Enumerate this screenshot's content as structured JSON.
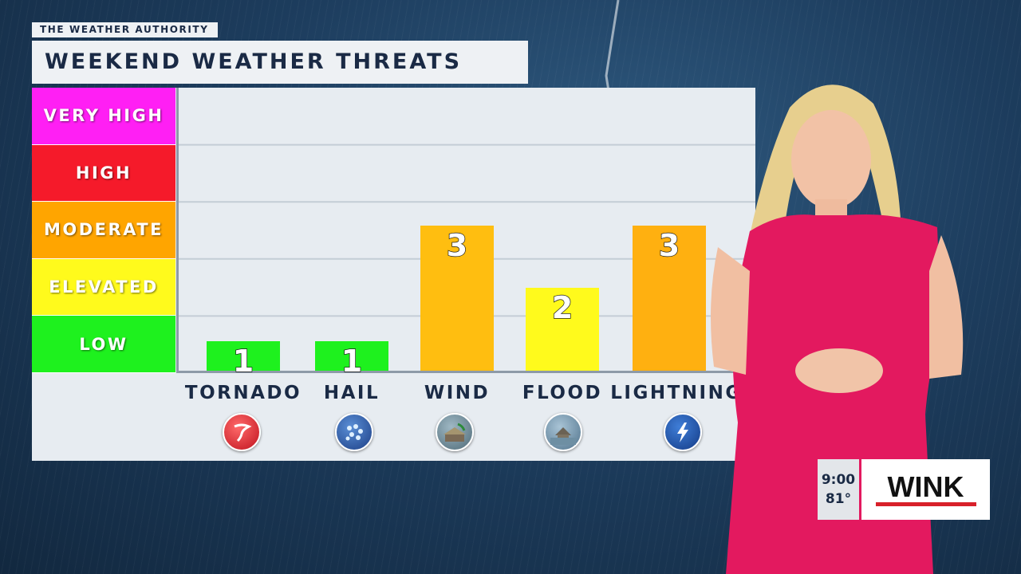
{
  "brand": "THE WEATHER AUTHORITY",
  "title": "WEEKEND WEATHER THREATS",
  "levels": [
    {
      "label": "VERY HIGH",
      "color": "#ff1ff4"
    },
    {
      "label": "HIGH",
      "color": "#f51a2a"
    },
    {
      "label": "MODERATE",
      "color": "#ffa500"
    },
    {
      "label": "ELEVATED",
      "color": "#fffa1c"
    },
    {
      "label": "LOW",
      "color": "#1ef11e"
    }
  ],
  "chart_data": {
    "type": "bar",
    "title": "WEEKEND WEATHER THREATS",
    "categories": [
      "TORNADO",
      "HAIL",
      "WIND",
      "FLOOD",
      "LIGHTNING"
    ],
    "values": [
      1,
      1,
      3,
      2,
      3
    ],
    "ylim": [
      0,
      5
    ],
    "grid": true,
    "bar_colors": [
      "#1ef11e",
      "#1ef11e",
      "#ffbe10",
      "#fffa1c",
      "#ffb010"
    ],
    "icons": [
      "tornado-icon",
      "hail-icon",
      "wind-icon",
      "flood-icon",
      "lightning-icon"
    ]
  },
  "bug": {
    "time": "9:00",
    "temp": "81°",
    "logo": "WINK"
  }
}
